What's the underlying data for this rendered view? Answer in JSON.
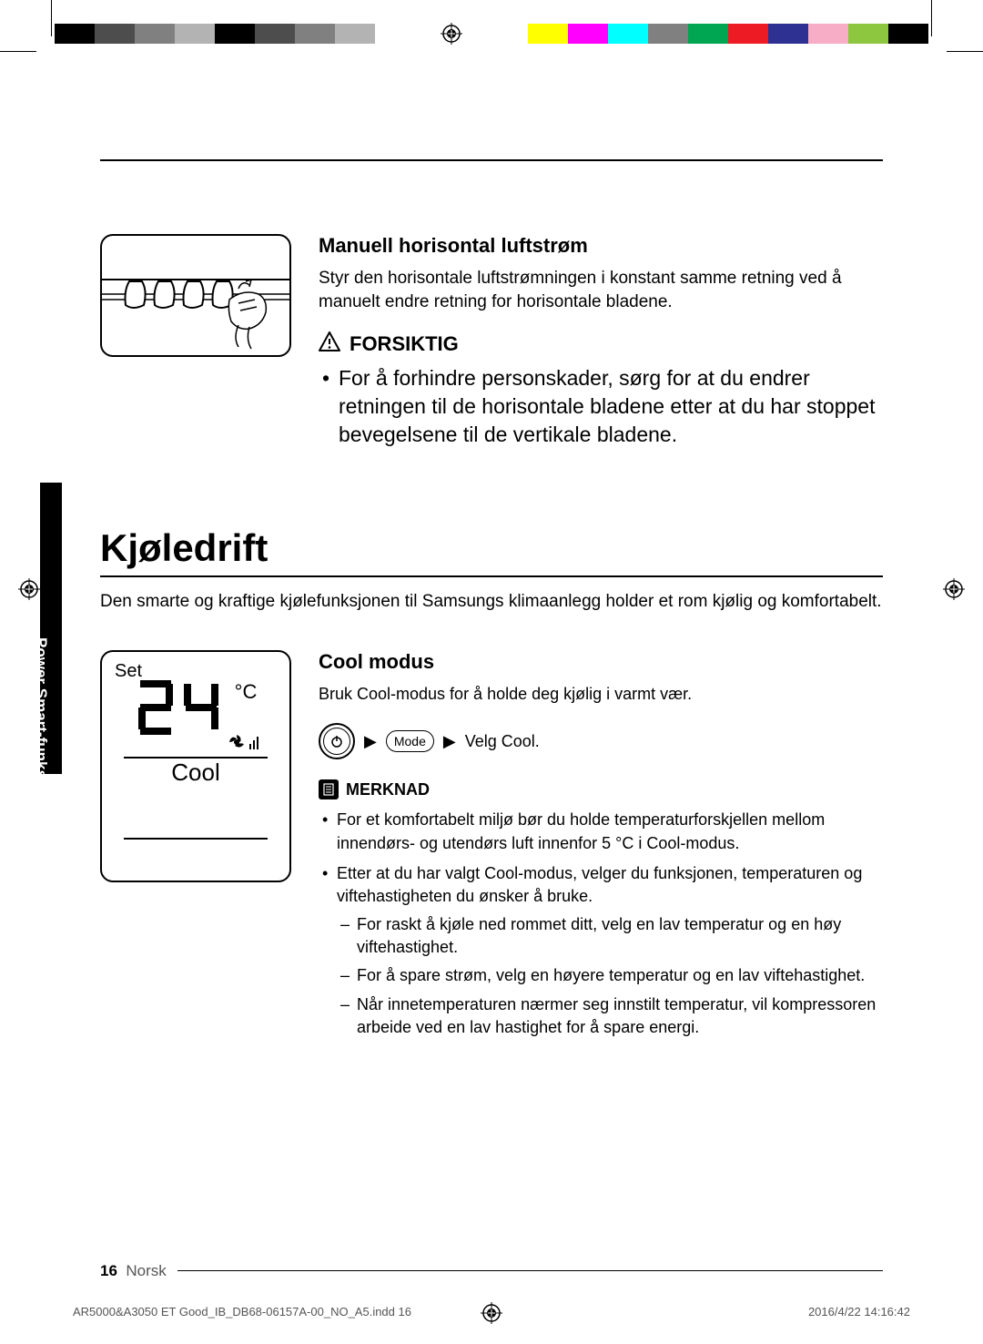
{
  "colorbar_left": [
    "#000000",
    "#4d4d4d",
    "#808080",
    "#b3b3b3",
    "#000000",
    "#4d4d4d",
    "#808080",
    "#b3b3b3"
  ],
  "colorbar_right": [
    "#ffff00",
    "#ff00ff",
    "#00ffff",
    "#808080",
    "#00a651",
    "#ed1c24",
    "#2e3192",
    "#f7adc5",
    "#8dc63f",
    "#000000"
  ],
  "section1": {
    "subheading": "Manuell horisontal luftstrøm",
    "body": "Styr den horisontale luftstrømningen i konstant samme retning ved å manuelt endre retning for horisontale bladene.",
    "caution_label": "FORSIKTIG",
    "caution_text": "For å forhindre personskader, sørg for at du endrer retningen til de horisontale bladene etter at du har stoppet bevegelsene til de vertikale bladene."
  },
  "sidebar_label": "Power Smart-funksjoner",
  "section2": {
    "title": "Kjøledrift",
    "intro": "Den smarte og kraftige kjølefunksjonen til Samsungs klimaanlegg holder et rom kjølig og komfortabelt.",
    "remote": {
      "set": "Set",
      "temp": "24",
      "unit": "°C",
      "mode": "Cool"
    },
    "cool_modus": "Cool modus",
    "cool_body": "Bruk Cool-modus for å holde deg kjølig i varmt vær.",
    "mode_btn": "Mode",
    "velg_cool": "Velg Cool.",
    "merknad": "MERKNAD",
    "notes": [
      "For et komfortabelt miljø bør du holde temperaturforskjellen mellom innendørs- og utendørs luft innenfor 5 °C i Cool-modus.",
      "Etter at du har valgt Cool-modus, velger du funksjonen, temperaturen og viftehastigheten du ønsker å bruke."
    ],
    "subnotes": [
      "For raskt å kjøle ned rommet ditt, velg en lav temperatur og en høy viftehastighet.",
      "For å spare strøm, velg en høyere temperatur og en lav viftehastighet.",
      "Når innetemperaturen nærmer seg innstilt temperatur, vil kompressoren arbeide ved en lav hastighet for å spare energi."
    ]
  },
  "footer": {
    "page": "16",
    "lang": "Norsk",
    "file": "AR5000&A3050 ET Good_IB_DB68-06157A-00_NO_A5.indd   16",
    "date": "2016/4/22   14:16:42"
  }
}
